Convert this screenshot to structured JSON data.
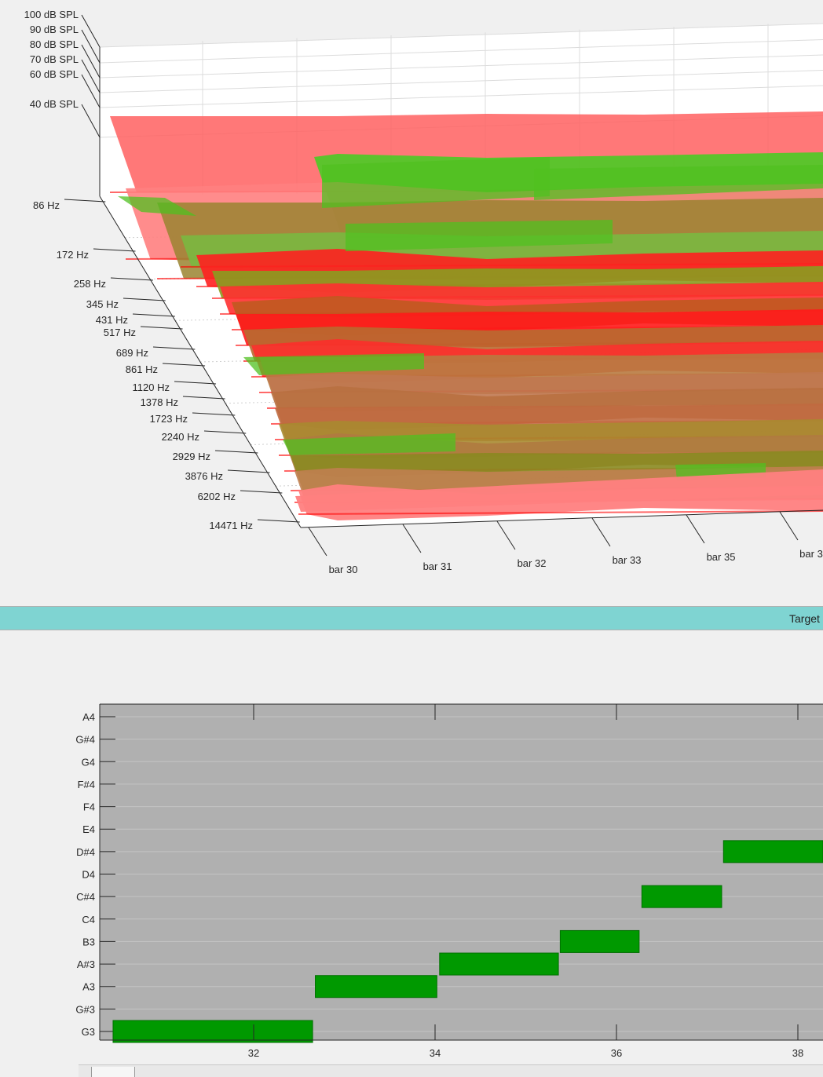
{
  "spectrum_plot": {
    "z_ticks": [
      "100 dB SPL",
      "90 dB SPL",
      "80 dB SPL",
      "70 dB SPL",
      "60 dB SPL",
      "40 dB SPL"
    ],
    "freq_ticks": [
      "86 Hz",
      "172 Hz",
      "258 Hz",
      "345 Hz",
      "431 Hz",
      "517 Hz",
      "689 Hz",
      "861 Hz",
      "1120 Hz",
      "1378 Hz",
      "1723 Hz",
      "2240 Hz",
      "2929 Hz",
      "3876 Hz",
      "6202 Hz",
      "14471 Hz"
    ],
    "bar_ticks": [
      "bar 30",
      "bar 31",
      "bar 32",
      "bar 33",
      "bar 35",
      "bar 3"
    ],
    "colors": {
      "target": "#ff0000",
      "match": "#00cc00",
      "overlap": "#8b7a1a"
    }
  },
  "divider": {
    "label": "Target"
  },
  "chart_data": [
    {
      "type": "area",
      "zticklabels": [
        "100 dB SPL",
        "90 dB SPL",
        "80 dB SPL",
        "70 dB SPL",
        "60 dB SPL",
        "40 dB SPL"
      ],
      "yticklabels": [
        "86 Hz",
        "172 Hz",
        "258 Hz",
        "345 Hz",
        "431 Hz",
        "517 Hz",
        "689 Hz",
        "861 Hz",
        "1120 Hz",
        "1378 Hz",
        "1723 Hz",
        "2240 Hz",
        "2929 Hz",
        "3876 Hz",
        "6202 Hz",
        "14471 Hz"
      ],
      "xticklabels": [
        "bar 30",
        "bar 31",
        "bar 32",
        "bar 33",
        "bar 35",
        "bar 3"
      ],
      "grid": true
    },
    {
      "type": "bar",
      "yticklabels": [
        "A4",
        "G#4",
        "G4",
        "F#4",
        "F4",
        "E4",
        "D#4",
        "D4",
        "C#4",
        "C4",
        "B3",
        "A#3",
        "A3",
        "G#3",
        "G3"
      ],
      "xticks": [
        32,
        34,
        36,
        38
      ],
      "xlim": [
        30.3,
        38.3
      ],
      "notes": [
        {
          "pitch": "G3",
          "start": 30.45,
          "end": 32.65
        },
        {
          "pitch": "A3",
          "start": 32.68,
          "end": 34.02
        },
        {
          "pitch": "A#3",
          "start": 34.05,
          "end": 35.36
        },
        {
          "pitch": "B3",
          "start": 35.38,
          "end": 36.25
        },
        {
          "pitch": "C#4",
          "start": 36.28,
          "end": 37.16
        },
        {
          "pitch": "D#4",
          "start": 37.18,
          "end": 38.3
        }
      ],
      "note_color": "#009900",
      "background": "#b0b0b0",
      "grid": true
    }
  ]
}
